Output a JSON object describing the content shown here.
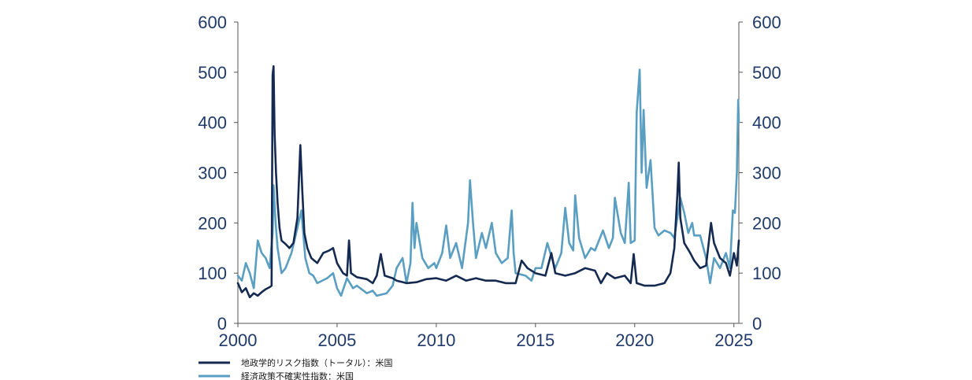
{
  "chart_data": {
    "type": "line",
    "title": "",
    "xlabel": "",
    "ylabel": "",
    "xlim": [
      2000,
      2025.25
    ],
    "ylim": [
      0,
      600
    ],
    "y2lim": [
      0,
      600
    ],
    "xticks": [
      "2000",
      "2005",
      "2010",
      "2015",
      "2020",
      "2025"
    ],
    "yticks_left": [
      "0",
      "100",
      "200",
      "300",
      "400",
      "500",
      "600"
    ],
    "yticks_right": [
      "0",
      "100",
      "200",
      "300",
      "400",
      "500",
      "600"
    ],
    "grid": false,
    "legend_position": "bottom-left",
    "series": [
      {
        "name": "地政学的リスク指数（トータル）：米国",
        "color": "#152a50",
        "axis": "left",
        "points": [
          [
            2000.0,
            80
          ],
          [
            2000.2,
            62
          ],
          [
            2000.4,
            70
          ],
          [
            2000.6,
            52
          ],
          [
            2000.8,
            60
          ],
          [
            2001.0,
            55
          ],
          [
            2001.2,
            62
          ],
          [
            2001.4,
            68
          ],
          [
            2001.6,
            72
          ],
          [
            2001.7,
            75
          ],
          [
            2001.75,
            495
          ],
          [
            2001.8,
            512
          ],
          [
            2001.85,
            380
          ],
          [
            2001.92,
            300
          ],
          [
            2002.0,
            240
          ],
          [
            2002.1,
            190
          ],
          [
            2002.2,
            165
          ],
          [
            2002.4,
            158
          ],
          [
            2002.6,
            150
          ],
          [
            2002.8,
            160
          ],
          [
            2003.0,
            210
          ],
          [
            2003.15,
            355
          ],
          [
            2003.25,
            260
          ],
          [
            2003.35,
            180
          ],
          [
            2003.5,
            150
          ],
          [
            2003.7,
            130
          ],
          [
            2004.0,
            120
          ],
          [
            2004.3,
            140
          ],
          [
            2004.6,
            145
          ],
          [
            2004.8,
            150
          ],
          [
            2005.0,
            120
          ],
          [
            2005.3,
            100
          ],
          [
            2005.5,
            95
          ],
          [
            2005.6,
            165
          ],
          [
            2005.7,
            100
          ],
          [
            2006.0,
            92
          ],
          [
            2006.5,
            88
          ],
          [
            2006.8,
            80
          ],
          [
            2007.0,
            95
          ],
          [
            2007.2,
            138
          ],
          [
            2007.4,
            95
          ],
          [
            2007.8,
            90
          ],
          [
            2008.0,
            85
          ],
          [
            2008.5,
            80
          ],
          [
            2009.0,
            82
          ],
          [
            2009.5,
            88
          ],
          [
            2010.0,
            90
          ],
          [
            2010.5,
            85
          ],
          [
            2011.0,
            95
          ],
          [
            2011.5,
            85
          ],
          [
            2012.0,
            90
          ],
          [
            2012.5,
            85
          ],
          [
            2013.0,
            85
          ],
          [
            2013.5,
            80
          ],
          [
            2014.0,
            80
          ],
          [
            2014.3,
            125
          ],
          [
            2014.6,
            110
          ],
          [
            2015.0,
            100
          ],
          [
            2015.5,
            95
          ],
          [
            2015.8,
            140
          ],
          [
            2016.0,
            100
          ],
          [
            2016.5,
            95
          ],
          [
            2017.0,
            100
          ],
          [
            2017.5,
            110
          ],
          [
            2018.0,
            105
          ],
          [
            2018.3,
            80
          ],
          [
            2018.6,
            100
          ],
          [
            2019.0,
            90
          ],
          [
            2019.5,
            95
          ],
          [
            2019.8,
            80
          ],
          [
            2019.95,
            138
          ],
          [
            2020.1,
            80
          ],
          [
            2020.5,
            75
          ],
          [
            2021.0,
            75
          ],
          [
            2021.5,
            80
          ],
          [
            2021.8,
            100
          ],
          [
            2022.0,
            150
          ],
          [
            2022.15,
            255
          ],
          [
            2022.22,
            320
          ],
          [
            2022.3,
            210
          ],
          [
            2022.5,
            160
          ],
          [
            2022.8,
            140
          ],
          [
            2023.0,
            125
          ],
          [
            2023.3,
            110
          ],
          [
            2023.6,
            115
          ],
          [
            2023.85,
            200
          ],
          [
            2024.0,
            160
          ],
          [
            2024.3,
            130
          ],
          [
            2024.6,
            120
          ],
          [
            2024.8,
            95
          ],
          [
            2025.0,
            140
          ],
          [
            2025.15,
            115
          ],
          [
            2025.25,
            165
          ]
        ]
      },
      {
        "name": "経済政策不確実性指数：米国",
        "color": "#5a9ec1",
        "axis": "right",
        "points": [
          [
            2000.0,
            95
          ],
          [
            2000.2,
            85
          ],
          [
            2000.4,
            120
          ],
          [
            2000.6,
            100
          ],
          [
            2000.8,
            70
          ],
          [
            2001.0,
            165
          ],
          [
            2001.2,
            140
          ],
          [
            2001.4,
            130
          ],
          [
            2001.6,
            110
          ],
          [
            2001.75,
            180
          ],
          [
            2001.8,
            275
          ],
          [
            2001.9,
            200
          ],
          [
            2002.0,
            150
          ],
          [
            2002.2,
            100
          ],
          [
            2002.4,
            110
          ],
          [
            2002.7,
            140
          ],
          [
            2003.0,
            190
          ],
          [
            2003.2,
            225
          ],
          [
            2003.4,
            130
          ],
          [
            2003.6,
            100
          ],
          [
            2003.8,
            95
          ],
          [
            2004.0,
            80
          ],
          [
            2004.5,
            90
          ],
          [
            2004.8,
            100
          ],
          [
            2005.0,
            70
          ],
          [
            2005.2,
            55
          ],
          [
            2005.5,
            90
          ],
          [
            2005.8,
            70
          ],
          [
            2006.0,
            75
          ],
          [
            2006.5,
            60
          ],
          [
            2006.8,
            65
          ],
          [
            2007.0,
            55
          ],
          [
            2007.5,
            60
          ],
          [
            2007.8,
            75
          ],
          [
            2008.0,
            110
          ],
          [
            2008.3,
            130
          ],
          [
            2008.5,
            80
          ],
          [
            2008.7,
            120
          ],
          [
            2008.8,
            240
          ],
          [
            2008.9,
            150
          ],
          [
            2009.0,
            200
          ],
          [
            2009.3,
            130
          ],
          [
            2009.6,
            110
          ],
          [
            2009.9,
            120
          ],
          [
            2010.0,
            110
          ],
          [
            2010.3,
            140
          ],
          [
            2010.5,
            195
          ],
          [
            2010.7,
            130
          ],
          [
            2011.0,
            160
          ],
          [
            2011.3,
            110
          ],
          [
            2011.6,
            200
          ],
          [
            2011.7,
            285
          ],
          [
            2011.85,
            200
          ],
          [
            2012.0,
            130
          ],
          [
            2012.3,
            180
          ],
          [
            2012.5,
            150
          ],
          [
            2012.8,
            200
          ],
          [
            2013.0,
            140
          ],
          [
            2013.3,
            120
          ],
          [
            2013.6,
            130
          ],
          [
            2013.8,
            225
          ],
          [
            2013.9,
            140
          ],
          [
            2014.0,
            100
          ],
          [
            2014.5,
            95
          ],
          [
            2014.8,
            85
          ],
          [
            2015.0,
            110
          ],
          [
            2015.3,
            110
          ],
          [
            2015.6,
            160
          ],
          [
            2015.9,
            120
          ],
          [
            2016.0,
            110
          ],
          [
            2016.3,
            140
          ],
          [
            2016.5,
            230
          ],
          [
            2016.7,
            160
          ],
          [
            2016.9,
            145
          ],
          [
            2017.0,
            255
          ],
          [
            2017.2,
            170
          ],
          [
            2017.5,
            130
          ],
          [
            2017.8,
            150
          ],
          [
            2018.0,
            145
          ],
          [
            2018.4,
            185
          ],
          [
            2018.7,
            150
          ],
          [
            2018.9,
            170
          ],
          [
            2019.0,
            250
          ],
          [
            2019.3,
            180
          ],
          [
            2019.5,
            160
          ],
          [
            2019.7,
            280
          ],
          [
            2019.8,
            160
          ],
          [
            2020.0,
            165
          ],
          [
            2020.1,
            420
          ],
          [
            2020.25,
            505
          ],
          [
            2020.35,
            300
          ],
          [
            2020.45,
            425
          ],
          [
            2020.6,
            270
          ],
          [
            2020.8,
            325
          ],
          [
            2021.0,
            190
          ],
          [
            2021.2,
            175
          ],
          [
            2021.5,
            185
          ],
          [
            2021.8,
            180
          ],
          [
            2022.0,
            170
          ],
          [
            2022.15,
            210
          ],
          [
            2022.3,
            250
          ],
          [
            2022.5,
            220
          ],
          [
            2022.7,
            180
          ],
          [
            2022.9,
            200
          ],
          [
            2023.0,
            175
          ],
          [
            2023.3,
            175
          ],
          [
            2023.6,
            130
          ],
          [
            2023.8,
            80
          ],
          [
            2024.0,
            130
          ],
          [
            2024.3,
            110
          ],
          [
            2024.6,
            140
          ],
          [
            2024.8,
            110
          ],
          [
            2024.95,
            225
          ],
          [
            2025.05,
            220
          ],
          [
            2025.15,
            300
          ],
          [
            2025.22,
            445
          ],
          [
            2025.25,
            400
          ]
        ]
      }
    ]
  }
}
